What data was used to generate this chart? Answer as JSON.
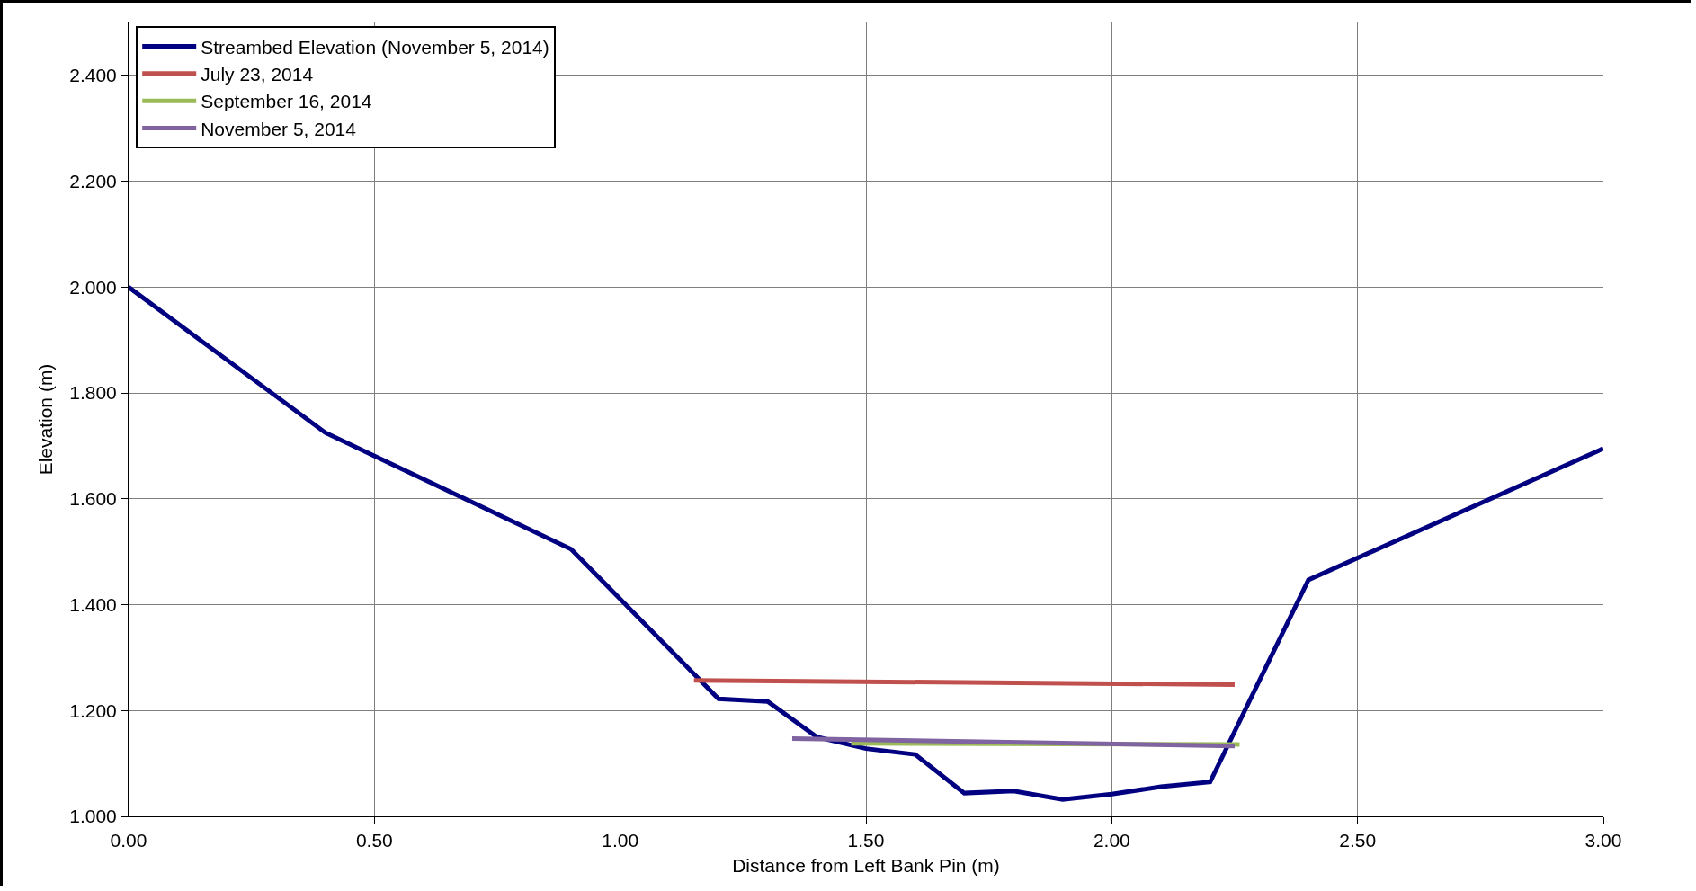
{
  "chart_data": {
    "type": "line",
    "xlabel": "Distance from Left Bank Pin (m)",
    "ylabel": "Elevation (m)",
    "xlim": [
      0,
      3
    ],
    "ylim": [
      1,
      2.5
    ],
    "xticks": [
      {
        "value": 0,
        "label": "0.00"
      },
      {
        "value": 0.5,
        "label": "0.50"
      },
      {
        "value": 1,
        "label": "1.00"
      },
      {
        "value": 1.5,
        "label": "1.50"
      },
      {
        "value": 2,
        "label": "2.00"
      },
      {
        "value": 2.5,
        "label": "2.50"
      },
      {
        "value": 3,
        "label": "3.00"
      }
    ],
    "yticks": [
      {
        "value": 1,
        "label": "1.000"
      },
      {
        "value": 1.2,
        "label": "1.200"
      },
      {
        "value": 1.4,
        "label": "1.400"
      },
      {
        "value": 1.6,
        "label": "1.600"
      },
      {
        "value": 1.8,
        "label": "1.800"
      },
      {
        "value": 2,
        "label": "2.000"
      },
      {
        "value": 2.2,
        "label": "2.200"
      },
      {
        "value": 2.4,
        "label": "2.400"
      }
    ],
    "grid": true,
    "legend": "top left",
    "marker": "none",
    "line_style": "solid",
    "series": [
      {
        "name": "Streambed Elevation (November 5, 2014)",
        "color": "#000080",
        "x": [
          0,
          0.4,
          0.9,
          1.2,
          1.3,
          1.4,
          1.5,
          1.6,
          1.7,
          1.8,
          1.9,
          2.0,
          2.1,
          2.2,
          2.4,
          3.0
        ],
        "values": [
          2.0,
          1.725,
          1.505,
          1.222,
          1.217,
          1.15,
          1.128,
          1.117,
          1.044,
          1.048,
          1.032,
          1.042,
          1.056,
          1.065,
          1.447,
          1.695
        ]
      },
      {
        "name": "July 23, 2014",
        "color": "#c0504d",
        "x": [
          1.15,
          2.25
        ],
        "values": [
          1.257,
          1.249
        ]
      },
      {
        "name": "September 16, 2014",
        "color": "#9bbb59",
        "x": [
          1.47,
          2.26
        ],
        "values": [
          1.138,
          1.136
        ]
      },
      {
        "name": "November 5, 2014",
        "color": "#8064a2",
        "x": [
          1.35,
          2.25
        ],
        "values": [
          1.147,
          1.133
        ]
      }
    ]
  }
}
